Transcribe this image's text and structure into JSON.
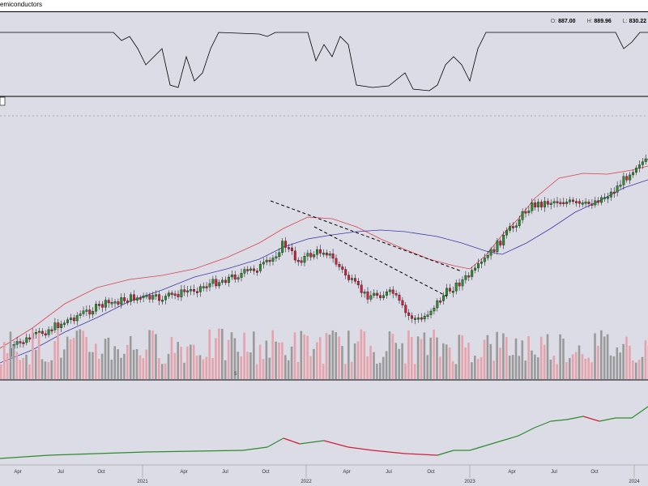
{
  "header": {
    "title": "emiconductors",
    "ohlc": {
      "o_label": "O:",
      "o_value": "887.00",
      "h_label": "H:",
      "h_value": "889.96",
      "l_label": "L:",
      "l_value": "830.22"
    }
  },
  "colors": {
    "background": "#dcdce6",
    "up_candle": "#2e8b2e",
    "down_candle": "#d0203a",
    "ma_fast": "#d9434f",
    "ma_slow": "#3b3ba8",
    "volume_up": "#9a9a9a",
    "volume_down": "#e7a3ab",
    "rs_up": "#2e8b2e",
    "rs_down": "#d0203a"
  },
  "chart_data": {
    "type": "candlestick",
    "x_range": [
      "2020-01",
      "2024-02"
    ],
    "months": [
      "Apr",
      "Jul",
      "Oct",
      "Apr",
      "Jul",
      "Oct",
      "Apr",
      "Jul",
      "Oct",
      "Apr",
      "Jul",
      "Oct"
    ],
    "years": [
      "2021",
      "2022",
      "2023",
      "2024"
    ],
    "price_trend": [
      {
        "date": "2020-03",
        "close": 62
      },
      {
        "date": "2020-05",
        "close": 76
      },
      {
        "date": "2020-07",
        "close": 88
      },
      {
        "date": "2020-09",
        "close": 100
      },
      {
        "date": "2020-11",
        "close": 110
      },
      {
        "date": "2021-01",
        "close": 116
      },
      {
        "date": "2021-03",
        "close": 115
      },
      {
        "date": "2021-05",
        "close": 122
      },
      {
        "date": "2021-07",
        "close": 130
      },
      {
        "date": "2021-09",
        "close": 138
      },
      {
        "date": "2021-11",
        "close": 148
      },
      {
        "date": "2021-12",
        "close": 166
      },
      {
        "date": "2022-01",
        "close": 150
      },
      {
        "date": "2022-03",
        "close": 160
      },
      {
        "date": "2022-05",
        "close": 130
      },
      {
        "date": "2022-06",
        "close": 118
      },
      {
        "date": "2022-08",
        "close": 120
      },
      {
        "date": "2022-09",
        "close": 100
      },
      {
        "date": "2022-10",
        "close": 95
      },
      {
        "date": "2022-12",
        "close": 122
      },
      {
        "date": "2023-02",
        "close": 140
      },
      {
        "date": "2023-04",
        "close": 170
      },
      {
        "date": "2023-06",
        "close": 200
      },
      {
        "date": "2023-08",
        "close": 205
      },
      {
        "date": "2023-10",
        "close": 200
      },
      {
        "date": "2023-12",
        "close": 212
      },
      {
        "date": "2024-02",
        "close": 240
      }
    ],
    "channel": {
      "start": "2021-12",
      "end": "2022-10",
      "direction": "down",
      "style": "dashed"
    },
    "moving_averages": [
      "fast (red)",
      "slow (blue)"
    ],
    "panels": [
      "indicator oscillator",
      "price + MAs",
      "volume",
      "relative strength line"
    ]
  }
}
